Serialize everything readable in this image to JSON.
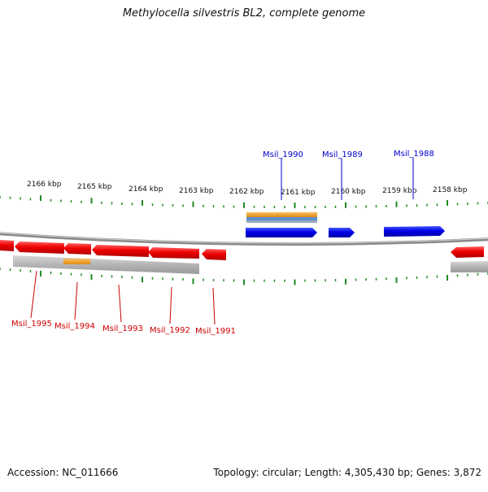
{
  "title": "Methylocella silvestris BL2, complete genome",
  "footer": {
    "accession": "Accession: NC_011666",
    "summary": "Topology: circular; Length: 4,305,430 bp; Genes: 3,872"
  },
  "colors": {
    "forward": "#0000dd",
    "reverse": "#dd0000",
    "tick": "#228b22",
    "orange": "#f0a020",
    "blue_band": "#5b8fd0",
    "gray": "#b8b8b8",
    "backbone": "#8a8a8a"
  },
  "axis": {
    "unit": "kbp",
    "labels": [
      "2166 kbp",
      "2165 kbp",
      "2164 kbp",
      "2163 kbp",
      "2162 kbp",
      "2161 kbp",
      "2160 kbp",
      "2159 kbp",
      "2158 kbp"
    ]
  },
  "forward_genes": [
    {
      "name": "Msil_1990"
    },
    {
      "name": "Msil_1989"
    },
    {
      "name": "Msil_1988"
    }
  ],
  "reverse_genes": [
    {
      "name": "Msil_1995"
    },
    {
      "name": "Msil_1994"
    },
    {
      "name": "Msil_1993"
    },
    {
      "name": "Msil_1992"
    },
    {
      "name": "Msil_1991"
    }
  ]
}
